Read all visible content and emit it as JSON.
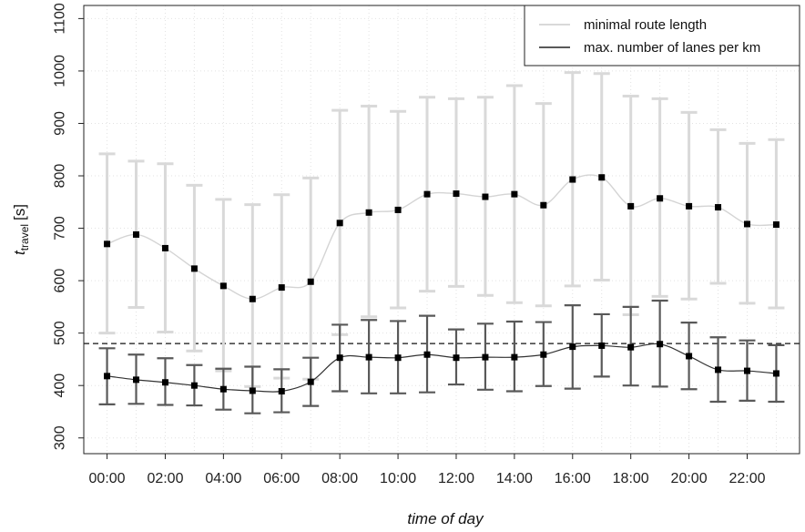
{
  "chart_data": {
    "type": "line",
    "xlabel": "time of day",
    "ylabel_main": "t",
    "ylabel_sub": "travel",
    "ylabel_unit": "[s]",
    "ylim": [
      270,
      1125
    ],
    "yticks": [
      300,
      400,
      500,
      600,
      700,
      800,
      900,
      1000,
      1100
    ],
    "xlim": [
      -0.8,
      23.8
    ],
    "xticks": [
      0,
      2,
      4,
      6,
      8,
      10,
      12,
      14,
      16,
      18,
      20,
      22
    ],
    "xtick_labels": [
      "00:00",
      "02:00",
      "04:00",
      "06:00",
      "08:00",
      "10:00",
      "12:00",
      "14:00",
      "16:00",
      "18:00",
      "20:00",
      "22:00"
    ],
    "grid": true,
    "legend_position": "top-right",
    "hours": [
      0,
      1,
      2,
      3,
      4,
      5,
      6,
      7,
      8,
      9,
      10,
      11,
      12,
      13,
      14,
      15,
      16,
      17,
      18,
      19,
      20,
      21,
      22,
      23
    ],
    "reference_line": 480,
    "series": [
      {
        "name": "minimal route length",
        "color": "#d9d9d9",
        "values": [
          670,
          688,
          662,
          623,
          590,
          565,
          587,
          598,
          710,
          730,
          735,
          765,
          766,
          760,
          765,
          744,
          793,
          797,
          742,
          757,
          742,
          740,
          708,
          707
        ],
        "upper": [
          842,
          828,
          823,
          782,
          755,
          745,
          764,
          796,
          925,
          933,
          923,
          950,
          947,
          950,
          972,
          938,
          997,
          995,
          952,
          947,
          921,
          888,
          862,
          869
        ],
        "lower": [
          500,
          549,
          502,
          466,
          428,
          398,
          414,
          412,
          497,
          531,
          548,
          580,
          589,
          572,
          558,
          552,
          590,
          601,
          535,
          570,
          565,
          595,
          557,
          548
        ]
      },
      {
        "name": "max. number of lanes per km",
        "color": "#595959",
        "values": [
          418,
          411,
          406,
          400,
          393,
          390,
          389,
          407,
          453,
          454,
          453,
          459,
          453,
          454,
          454,
          459,
          474,
          476,
          473,
          479,
          456,
          430,
          428,
          423
        ],
        "upper": [
          471,
          459,
          452,
          439,
          432,
          436,
          431,
          453,
          516,
          525,
          523,
          533,
          507,
          518,
          522,
          521,
          553,
          536,
          550,
          562,
          520,
          492,
          486,
          477
        ],
        "lower": [
          364,
          365,
          363,
          362,
          354,
          347,
          349,
          361,
          389,
          385,
          385,
          387,
          402,
          392,
          389,
          399,
          394,
          417,
          400,
          398,
          393,
          369,
          371,
          369
        ]
      }
    ]
  }
}
